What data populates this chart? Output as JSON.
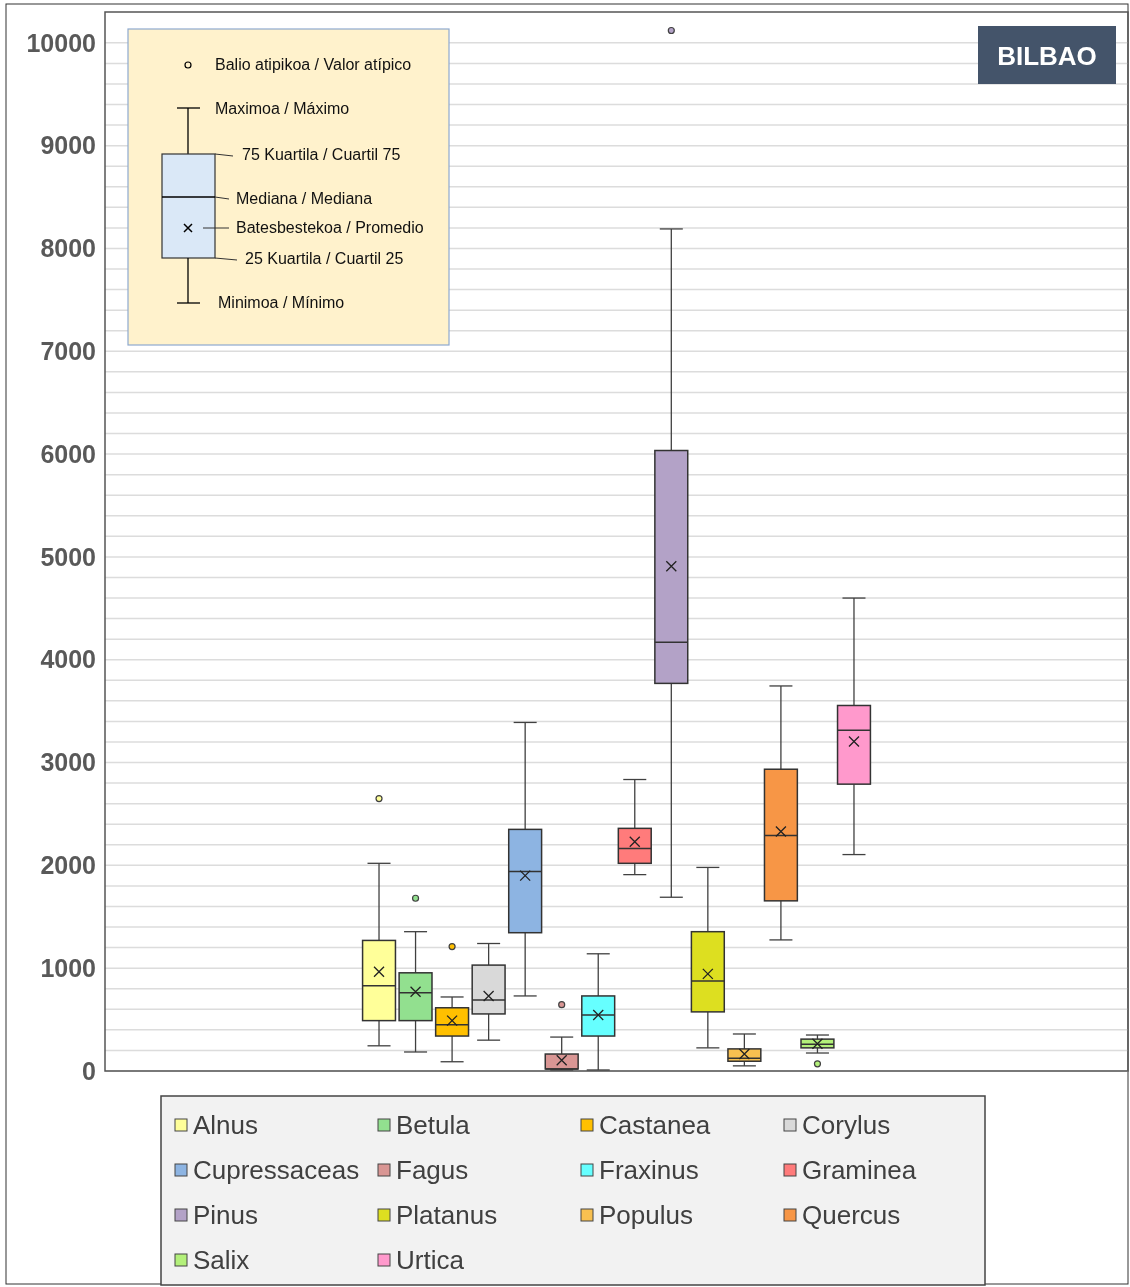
{
  "chart_data": {
    "type": "box",
    "title": "BILBAO",
    "categories": [
      null
    ],
    "ylim": [
      0,
      10300
    ],
    "yticks": [
      0,
      {
        "value": 200,
        "label": null
      },
      {
        "value": 400,
        "label": null
      },
      {
        "value": 600,
        "label": null
      },
      {
        "value": 800,
        "label": null
      },
      1000,
      {
        "value": 1200,
        "label": null
      },
      {
        "value": 1400,
        "label": null
      },
      {
        "value": 1600,
        "label": null
      },
      {
        "value": 1800,
        "label": null
      },
      2000,
      {
        "value": 2200,
        "label": null
      },
      {
        "value": 2400,
        "label": null
      },
      {
        "value": 2600,
        "label": null
      },
      {
        "value": 2800,
        "label": null
      },
      3000,
      {
        "value": 3200,
        "label": null
      },
      {
        "value": 3400,
        "label": null
      },
      {
        "value": 3600,
        "label": null
      },
      {
        "value": 3800,
        "label": null
      },
      4000,
      {
        "value": 4200,
        "label": null
      },
      {
        "value": 4400,
        "label": null
      },
      {
        "value": 4600,
        "label": null
      },
      {
        "value": 4800,
        "label": null
      },
      5000,
      {
        "value": 5200,
        "label": null
      },
      {
        "value": 5400,
        "label": null
      },
      {
        "value": 5600,
        "label": null
      },
      {
        "value": 5800,
        "label": null
      },
      6000,
      {
        "value": 6200,
        "label": null
      },
      {
        "value": 6400,
        "label": null
      },
      {
        "value": 6600,
        "label": null
      },
      {
        "value": 6800,
        "label": null
      },
      7000,
      {
        "value": 7200,
        "label": null
      },
      {
        "value": 7400,
        "label": null
      },
      {
        "value": 7600,
        "label": null
      },
      {
        "value": 7800,
        "label": null
      },
      8000,
      {
        "value": 8200,
        "label": null
      },
      {
        "value": 8400,
        "label": null
      },
      {
        "value": 8600,
        "label": null
      },
      {
        "value": 8800,
        "label": null
      },
      9000,
      {
        "value": 9200,
        "label": null
      },
      {
        "value": 9400,
        "label": null
      },
      {
        "value": 9600,
        "label": null
      },
      {
        "value": 9800,
        "label": null
      },
      10000
    ],
    "grid": "y",
    "legend": "bottom",
    "marker": "circle",
    "annotations": [
      "Balio atipikoa / Valor atípico",
      "Maximoa / Máximo",
      "75 Kuartila / Cuartil 75",
      "Mediana / Mediana",
      "Batesbestekoa / Promedio",
      "25 Kuartila / Cuartil 25",
      "Minimoa / Mínimo"
    ],
    "series": [
      {
        "name": "Alnus",
        "color": "#ffff99",
        "boxes": [
          {
            "low": 245,
            "q1": 490,
            "median": 830,
            "q3": 1270,
            "high": 2020,
            "mean": 965,
            "outliers": [
              2650
            ]
          }
        ]
      },
      {
        "name": "Betula",
        "color": "#92e08f",
        "boxes": [
          {
            "low": 185,
            "q1": 490,
            "median": 760,
            "q3": 955,
            "high": 1355,
            "mean": 770,
            "outliers": [
              1680
            ]
          }
        ]
      },
      {
        "name": "Castanea",
        "color": "#ffc000",
        "boxes": [
          {
            "low": 90,
            "q1": 340,
            "median": 450,
            "q3": 615,
            "high": 720,
            "mean": 490,
            "outliers": [
              1210
            ]
          }
        ]
      },
      {
        "name": "Corylus",
        "color": "#d9d9d9",
        "boxes": [
          {
            "low": 300,
            "q1": 555,
            "median": 690,
            "q3": 1030,
            "high": 1240,
            "mean": 730
          }
        ]
      },
      {
        "name": "Cupressaceas",
        "color": "#8db4e2",
        "boxes": [
          {
            "low": 730,
            "q1": 1345,
            "median": 1940,
            "q3": 2350,
            "high": 3390,
            "mean": 1900
          }
        ]
      },
      {
        "name": "Fagus",
        "color": "#d99694",
        "boxes": [
          {
            "low": 10,
            "q1": 20,
            "median": 20,
            "q3": 165,
            "high": 330,
            "mean": 105,
            "outliers": [
              645
            ]
          }
        ]
      },
      {
        "name": "Fraxinus",
        "color": "#66ffff",
        "boxes": [
          {
            "low": 10,
            "q1": 340,
            "median": 545,
            "q3": 730,
            "high": 1140,
            "mean": 545
          }
        ]
      },
      {
        "name": "Graminea",
        "color": "#ff7b7b",
        "boxes": [
          {
            "low": 1910,
            "q1": 2020,
            "median": 2165,
            "q3": 2360,
            "high": 2835,
            "mean": 2230
          }
        ]
      },
      {
        "name": "Pinus",
        "color": "#b3a2c7",
        "boxes": [
          {
            "low": 1690,
            "q1": 3770,
            "median": 4170,
            "q3": 6035,
            "high": 8190,
            "mean": 4910,
            "outliers": [
              10120
            ]
          }
        ]
      },
      {
        "name": "Platanus",
        "color": "#dddf20",
        "boxes": [
          {
            "low": 225,
            "q1": 575,
            "median": 875,
            "q3": 1355,
            "high": 1980,
            "mean": 945
          }
        ]
      },
      {
        "name": "Populus",
        "color": "#f8c050",
        "boxes": [
          {
            "low": 50,
            "q1": 95,
            "median": 125,
            "q3": 215,
            "high": 360,
            "mean": 165
          }
        ]
      },
      {
        "name": "Quercus",
        "color": "#f79646",
        "boxes": [
          {
            "low": 1275,
            "q1": 1655,
            "median": 2290,
            "q3": 2935,
            "high": 3745,
            "mean": 2330
          }
        ]
      },
      {
        "name": "Salix",
        "color": "#b3f07a",
        "boxes": [
          {
            "low": 175,
            "q1": 225,
            "median": 260,
            "q3": 310,
            "high": 350,
            "mean": 265,
            "outliers": [
              70
            ]
          }
        ]
      },
      {
        "name": "Urtica",
        "color": "#ff99cc",
        "boxes": [
          {
            "low": 2105,
            "q1": 2790,
            "median": 3315,
            "q3": 3555,
            "high": 4600,
            "mean": 3205
          }
        ]
      }
    ]
  }
}
